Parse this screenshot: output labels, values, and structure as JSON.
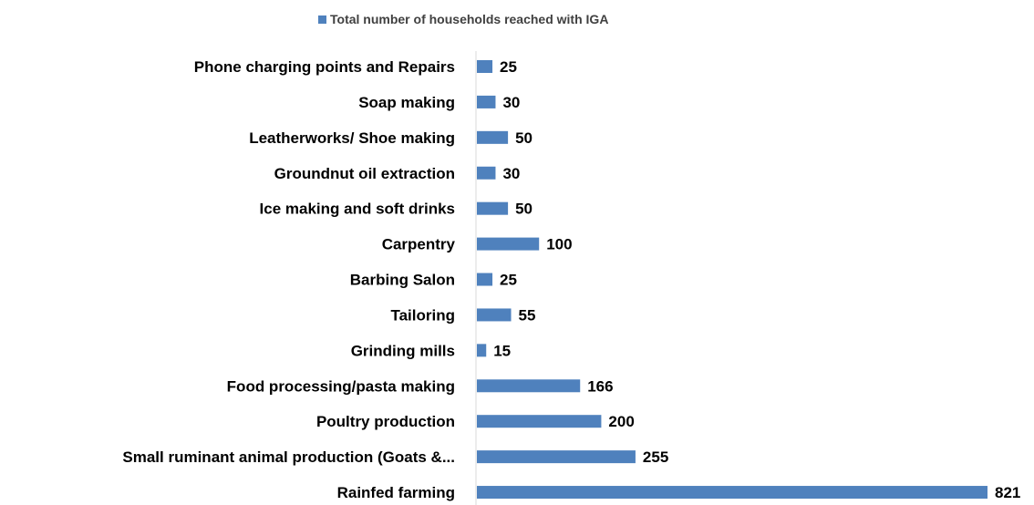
{
  "chart_data": {
    "type": "bar",
    "orientation": "horizontal",
    "categories": [
      "Phone charging points and Repairs",
      "Soap making",
      "Leatherworks/ Shoe making",
      "Groundnut oil extraction",
      "Ice making and soft drinks",
      "Carpentry",
      "Barbing Salon",
      "Tailoring",
      "Grinding mills",
      "Food processing/pasta making",
      "Poultry production",
      "Small ruminant animal production (Goats &...",
      "Rainfed farming"
    ],
    "series": [
      {
        "name": "Total number of households reached with IGA",
        "values": [
          25,
          30,
          50,
          30,
          50,
          100,
          25,
          55,
          15,
          166,
          200,
          255,
          821
        ]
      }
    ],
    "data_labels": true,
    "legend_position": "top",
    "grid": false,
    "xlim": [
      0,
      821
    ],
    "color": "#4f81bd"
  }
}
